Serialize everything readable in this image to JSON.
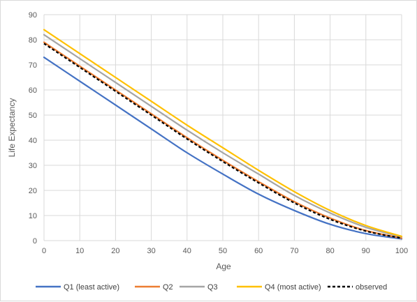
{
  "chart_data": {
    "type": "line",
    "title": "",
    "xlabel": "Age",
    "ylabel": "Life Expectancy",
    "xlim": [
      0,
      100
    ],
    "ylim": [
      0,
      90
    ],
    "x_ticks": [
      0,
      10,
      20,
      30,
      40,
      50,
      60,
      70,
      80,
      90,
      100
    ],
    "y_ticks": [
      0,
      10,
      20,
      30,
      40,
      50,
      60,
      70,
      80,
      90
    ],
    "grid": true,
    "legend_position": "bottom",
    "x": [
      0,
      10,
      20,
      30,
      40,
      50,
      60,
      70,
      80,
      90,
      100
    ],
    "series": [
      {
        "name": "Q1 (least active)",
        "color": "#4472c4",
        "dashed": false,
        "values": [
          73,
          63.5,
          54,
          44.5,
          35,
          26.5,
          18.5,
          12,
          6.5,
          2.8,
          0.7
        ]
      },
      {
        "name": "Q2",
        "color": "#ed7d31",
        "dashed": false,
        "values": [
          79,
          69.5,
          60,
          50.5,
          41,
          32,
          23.5,
          15.5,
          9,
          4,
          1
        ]
      },
      {
        "name": "Q3",
        "color": "#a5a5a5",
        "dashed": false,
        "values": [
          82,
          72.5,
          63,
          53.5,
          44,
          35,
          26.5,
          18,
          11,
          5.3,
          1.5
        ]
      },
      {
        "name": "Q4 (most active)",
        "color": "#ffc000",
        "dashed": false,
        "values": [
          84,
          74.5,
          65,
          55.5,
          46,
          37,
          28,
          19.5,
          12,
          6,
          1.7
        ]
      },
      {
        "name": "observed",
        "color": "#000000",
        "dashed": true,
        "values": [
          78.5,
          69,
          59.5,
          50,
          40.5,
          31.5,
          23,
          15,
          8.5,
          3.8,
          1
        ]
      }
    ]
  }
}
